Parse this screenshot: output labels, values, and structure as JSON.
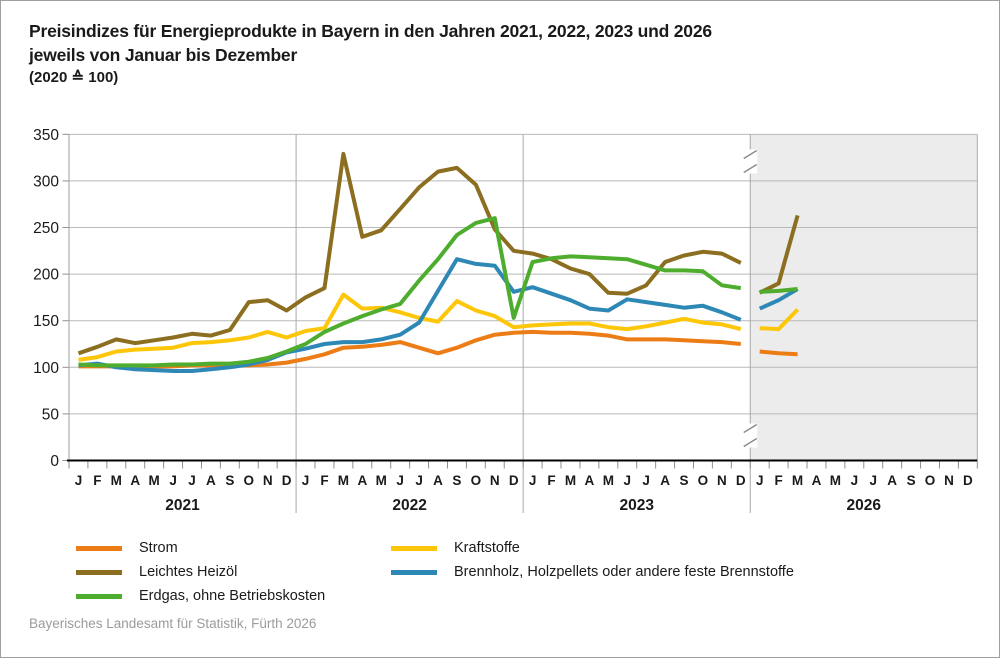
{
  "title": {
    "line1": "Preisindizes für Energieprodukte in Bayern in den Jahren 2021, 2022, 2023 und 2026",
    "line2": "jeweils von Januar bis Dezember",
    "line3": "(2020 ≙ 100)"
  },
  "source_note": "Bayerisches Landesamt für Statistik, Fürth 2026",
  "chart_data": {
    "type": "line",
    "title": "Preisindizes für Energieprodukte in Bayern in den Jahren 2021, 2022, 2023 und 2026 jeweils von Januar bis Dezember",
    "subtitle": "(2020 ≙ 100)",
    "ylim": [
      0,
      350
    ],
    "yticks": [
      0,
      50,
      100,
      150,
      200,
      250,
      300,
      350
    ],
    "grid": "horizontal",
    "legend_position": "bottom",
    "month_letters": [
      "J",
      "F",
      "M",
      "A",
      "M",
      "J",
      "J",
      "A",
      "S",
      "O",
      "N",
      "D"
    ],
    "years": [
      "2021",
      "2022",
      "2023",
      "2026"
    ],
    "connected_years": [
      "2021",
      "2022",
      "2023"
    ],
    "axis_break_between": [
      "2023",
      "2026"
    ],
    "highlighted_year": "2026",
    "highlight_bg": "#ececec",
    "series": [
      {
        "name": "Strom",
        "color": "#ec7c15",
        "values_by_year": {
          "2021": [
            101,
            101,
            101,
            101,
            101,
            101,
            102,
            102,
            102,
            102,
            103,
            105
          ],
          "2022": [
            109,
            114,
            121,
            122,
            124,
            127,
            121,
            115,
            121,
            129,
            135,
            137
          ],
          "2023": [
            138,
            137,
            137,
            136,
            134,
            130,
            130,
            130,
            129,
            128,
            127,
            125
          ],
          "2026": [
            117,
            115,
            114
          ]
        }
      },
      {
        "name": "Leichtes Heizöl",
        "color": "#8c6e20",
        "values_by_year": {
          "2021": [
            115,
            122,
            130,
            126,
            129,
            132,
            136,
            134,
            140,
            170,
            172,
            161
          ],
          "2022": [
            175,
            185,
            329,
            240,
            247,
            270,
            293,
            310,
            314,
            296,
            248,
            225
          ],
          "2023": [
            222,
            216,
            206,
            200,
            180,
            179,
            188,
            213,
            220,
            224,
            222,
            212
          ],
          "2026": [
            180,
            190,
            263
          ]
        }
      },
      {
        "name": "Kraftstoffe",
        "color": "#fdc608",
        "values_by_year": {
          "2021": [
            108,
            111,
            117,
            119,
            120,
            121,
            126,
            127,
            129,
            132,
            138,
            132
          ],
          "2022": [
            139,
            142,
            178,
            163,
            164,
            159,
            153,
            149,
            171,
            161,
            155,
            143
          ],
          "2023": [
            145,
            146,
            147,
            147,
            143,
            141,
            144,
            148,
            152,
            148,
            146,
            141
          ],
          "2026": [
            142,
            141,
            162
          ]
        }
      },
      {
        "name": "Brennholz, Holzpellets oder andere feste Brennstoffe",
        "color": "#2e88b5",
        "values_by_year": {
          "2021": [
            102,
            104,
            100,
            98,
            97,
            96,
            96,
            98,
            100,
            103,
            108,
            116
          ],
          "2022": [
            120,
            125,
            127,
            127,
            130,
            135,
            148,
            182,
            216,
            211,
            209,
            181
          ],
          "2023": [
            186,
            179,
            172,
            163,
            161,
            173,
            170,
            167,
            164,
            166,
            159,
            151
          ],
          "2026": [
            163,
            172,
            184
          ]
        }
      },
      {
        "name": "Erdgas, ohne Betriebskosten",
        "color": "#4ead2f",
        "values_by_year": {
          "2021": [
            103,
            102,
            102,
            102,
            102,
            103,
            103,
            104,
            104,
            106,
            110,
            117
          ],
          "2022": [
            125,
            138,
            147,
            155,
            162,
            168,
            193,
            216,
            242,
            255,
            260,
            153
          ],
          "2023": [
            213,
            217,
            219,
            218,
            217,
            216,
            210,
            204,
            204,
            203,
            188,
            185
          ],
          "2026": [
            181,
            182,
            184
          ]
        }
      }
    ]
  },
  "legend": {
    "columns": [
      [
        "Strom",
        "Leichtes Heizöl",
        "Erdgas, ohne Betriebskosten"
      ],
      [
        "Kraftstoffe",
        "Brennholz, Holzpellets oder andere feste Brennstoffe"
      ]
    ]
  }
}
